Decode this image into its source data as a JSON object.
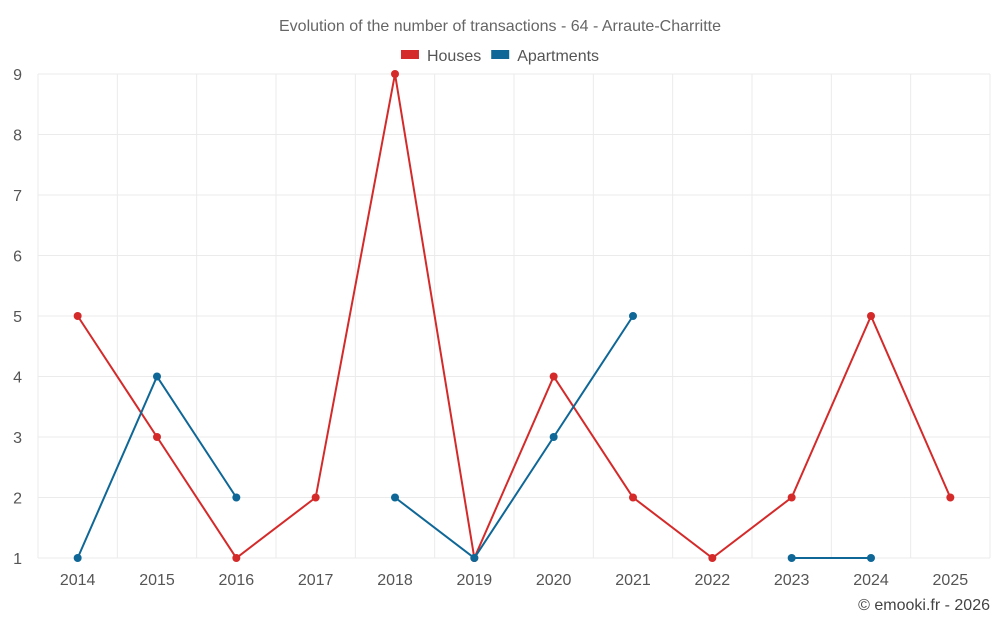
{
  "chart_data": {
    "type": "line",
    "title": "Evolution of the number of transactions - 64 - Arraute-Charritte",
    "x": [
      "2014",
      "2015",
      "2016",
      "2017",
      "2018",
      "2019",
      "2020",
      "2021",
      "2022",
      "2023",
      "2024",
      "2025"
    ],
    "ylim": [
      1,
      9
    ],
    "yticks": [
      1,
      2,
      3,
      4,
      5,
      6,
      7,
      8,
      9
    ],
    "grid": true,
    "legend_position": "top-center",
    "series": [
      {
        "name": "Houses",
        "color": "#d42a2a",
        "values": [
          5,
          3,
          1,
          2,
          9,
          1,
          4,
          2,
          1,
          2,
          5,
          2
        ]
      },
      {
        "name": "Apartments",
        "color": "#0e6796",
        "values": [
          1,
          4,
          2,
          null,
          2,
          1,
          3,
          5,
          null,
          1,
          1,
          null
        ]
      }
    ],
    "credit": "© emooki.fr - 2026"
  }
}
